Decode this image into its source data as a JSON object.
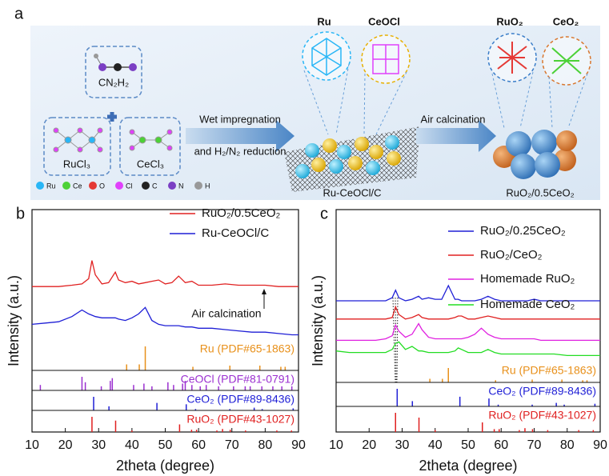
{
  "schematic": {
    "label": "a",
    "reagent_1": "CN₂H₂",
    "reagent_2": "RuCl₃",
    "reagent_3": "CeCl₃",
    "step_1_line_1": "Wet impregnation",
    "step_1_line_2": "and H₂/N₂ reduction",
    "intermediate_phases": [
      "Ru",
      "CeOCl"
    ],
    "intermediate": "Ru-CeOCl/C",
    "step_2": "Air calcination",
    "product_phases": [
      "RuO₂",
      "CeO₂"
    ],
    "product": "RuO₂/0.5CeO₂",
    "element_legend": [
      {
        "symbol": "Ru",
        "color": "#29b6f6"
      },
      {
        "symbol": "Ce",
        "color": "#4cd137"
      },
      {
        "symbol": "O",
        "color": "#e53935"
      },
      {
        "symbol": "Cl",
        "color": "#e040fb"
      },
      {
        "symbol": "C",
        "color": "#222222"
      },
      {
        "symbol": "N",
        "color": "#7b3fc4"
      },
      {
        "symbol": "H",
        "color": "#999999"
      }
    ]
  },
  "chart_data": [
    {
      "type": "line",
      "panel_label": "b",
      "xlabel": "2theta (degree)",
      "ylabel": "Intensity (a.u.)",
      "xlim": [
        10,
        90
      ],
      "xticks": [
        10,
        20,
        30,
        40,
        50,
        60,
        70,
        80,
        90
      ],
      "ylim": [
        0,
        100
      ],
      "legend": "upper right",
      "x": [
        10,
        14,
        18,
        22,
        25,
        27,
        28,
        29,
        31,
        33,
        35,
        36,
        38,
        40,
        42,
        44,
        46,
        48,
        50,
        52,
        54,
        56,
        58,
        60,
        64,
        68,
        72,
        76,
        80,
        84,
        88,
        90
      ],
      "series": [
        {
          "name": "RuO₂/0.5CeO₂",
          "color": "#e02020",
          "values": [
            41,
            41,
            41,
            42,
            43,
            47,
            61,
            50,
            43,
            44,
            52,
            46,
            44,
            45,
            43,
            44,
            45,
            46,
            43,
            44,
            49,
            44,
            45,
            42,
            42,
            43,
            42,
            42,
            42,
            41,
            41,
            41
          ]
        },
        {
          "name": "Ru-CeOCl/C",
          "color": "#1f1fd6",
          "values": [
            12,
            13,
            14,
            18,
            23,
            20,
            19,
            18,
            17,
            17,
            17,
            16,
            15,
            17,
            20,
            25,
            15,
            12,
            11,
            11,
            11,
            10,
            10,
            9,
            9,
            8,
            7,
            6,
            6,
            5,
            4,
            4
          ]
        }
      ],
      "annotation": "Air calcination",
      "references": [
        {
          "name": "Ru (PDF#65-1863)",
          "color": "#e8901a",
          "positions": [
            38.4,
            42.2,
            44.0,
            58.3,
            69.4,
            78.4,
            84.7,
            86.0
          ],
          "intensities": [
            25,
            25,
            100,
            15,
            20,
            20,
            15,
            15
          ]
        },
        {
          "name": "CeOCl (PDF#81-0791)",
          "color": "#9b30d0",
          "positions": [
            12.5,
            25.0,
            26.0,
            30.8,
            33.5,
            34.1,
            40.5,
            43.6,
            46.0,
            50.8,
            52.5,
            55.2,
            56.0,
            58.0,
            60.5,
            62.3,
            66.0,
            70.5,
            74.0,
            75.5,
            79.0,
            82.3,
            85.0,
            88.0
          ],
          "intensities": [
            40,
            100,
            60,
            30,
            70,
            90,
            40,
            50,
            30,
            60,
            40,
            50,
            70,
            40,
            30,
            40,
            30,
            30,
            30,
            30,
            30,
            30,
            30,
            30
          ]
        },
        {
          "name": "CeO₂ (PDF#89-8436)",
          "color": "#1f1fd6",
          "positions": [
            28.5,
            33.1,
            47.5,
            56.3,
            59.1,
            69.4,
            76.7,
            79.1,
            88.4
          ],
          "intensities": [
            100,
            30,
            55,
            45,
            10,
            10,
            20,
            10,
            15
          ]
        },
        {
          "name": "RuO₂ (PDF#43-1027)",
          "color": "#e02020",
          "positions": [
            28.0,
            35.1,
            40.0,
            54.3,
            57.9,
            59.4,
            65.5,
            67.2,
            69.5,
            74.1,
            83.5,
            87.9
          ],
          "intensities": [
            100,
            75,
            10,
            50,
            15,
            15,
            10,
            20,
            15,
            10,
            10,
            10
          ]
        }
      ]
    },
    {
      "type": "line",
      "panel_label": "c",
      "xlabel": "2theta (degree)",
      "ylabel": "Intensity (a.u.)",
      "xlim": [
        10,
        90
      ],
      "xticks": [
        10,
        20,
        30,
        40,
        50,
        60,
        70,
        80,
        90
      ],
      "ylim": [
        0,
        100
      ],
      "legend": "upper right",
      "x": [
        10,
        14,
        18,
        22,
        25,
        27,
        28,
        29,
        31,
        33,
        35,
        36,
        38,
        40,
        42,
        44,
        46,
        47,
        48,
        50,
        52,
        54,
        56,
        58,
        60,
        64,
        68,
        70,
        72,
        76,
        80,
        84,
        88,
        90
      ],
      "series": [
        {
          "name": "RuO₂/0.25CeO₂",
          "color": "#1f1fd6",
          "values": [
            40,
            40,
            40,
            40,
            40,
            42,
            47,
            42,
            40,
            41,
            43,
            41,
            42,
            41,
            41,
            50,
            41,
            41,
            40,
            40,
            40,
            41,
            43,
            41,
            40,
            40,
            40,
            41,
            40,
            40,
            40,
            40,
            40,
            40
          ]
        },
        {
          "name": "RuO₂/CeO₂",
          "color": "#e02020",
          "values": [
            28,
            28,
            28,
            28,
            28,
            29,
            36,
            31,
            28,
            29,
            31,
            29,
            28,
            28,
            28,
            28,
            29,
            30,
            30,
            28,
            28,
            29,
            30,
            29,
            28,
            28,
            28,
            28,
            28,
            28,
            28,
            28,
            28,
            28
          ]
        },
        {
          "name": "Homemade RuO₂",
          "color": "#e020e0",
          "values": [
            14,
            14,
            14,
            14,
            15,
            17,
            24,
            20,
            16,
            18,
            25,
            21,
            16,
            15,
            15,
            15,
            15,
            15,
            15,
            16,
            18,
            22,
            18,
            16,
            15,
            15,
            15,
            15,
            14,
            14,
            14,
            14,
            14,
            14
          ]
        },
        {
          "name": "Homemade CeO₂",
          "color": "#22dd22",
          "values": [
            7,
            6,
            6,
            6,
            6,
            8,
            12,
            13,
            8,
            10,
            7,
            7,
            6,
            6,
            6,
            6,
            7,
            9,
            8,
            6,
            6,
            6,
            8,
            6,
            5,
            5,
            5,
            5,
            5,
            5,
            4,
            4,
            4,
            4
          ]
        }
      ],
      "references": [
        {
          "name": "Ru (PDF#65-1863)",
          "color": "#e8901a",
          "positions": [
            38.4,
            42.2,
            44.0,
            58.3,
            69.4,
            78.4,
            84.7,
            86.0
          ],
          "intensities": [
            25,
            25,
            100,
            15,
            20,
            20,
            15,
            15
          ]
        },
        {
          "name": "CeO₂ (PDF#89-8436)",
          "color": "#1f1fd6",
          "positions": [
            28.5,
            33.1,
            47.5,
            56.3,
            59.1,
            69.4,
            76.7,
            79.1,
            88.4
          ],
          "intensities": [
            100,
            30,
            55,
            45,
            10,
            10,
            20,
            10,
            15
          ]
        },
        {
          "name": "RuO₂ (PDF#43-1027)",
          "color": "#e02020",
          "positions": [
            28.0,
            35.1,
            40.0,
            54.3,
            57.9,
            59.4,
            65.5,
            67.2,
            69.5,
            74.1,
            83.5,
            87.9
          ],
          "intensities": [
            100,
            75,
            10,
            50,
            15,
            15,
            10,
            20,
            15,
            10,
            10,
            10
          ]
        }
      ]
    }
  ]
}
